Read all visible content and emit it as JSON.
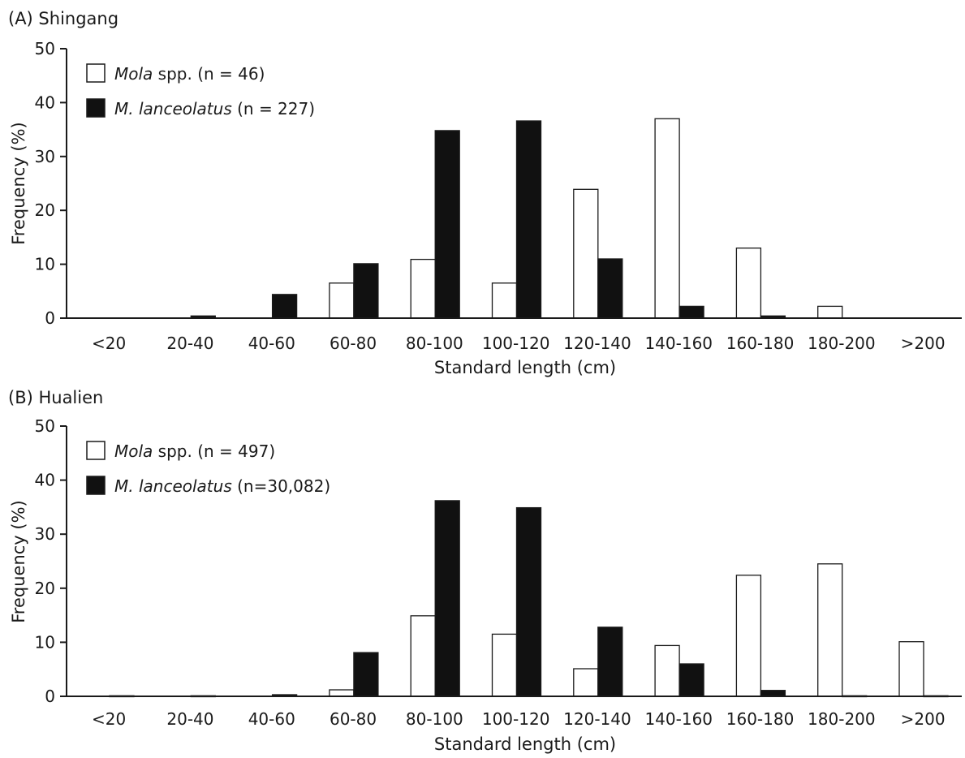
{
  "chart_data": [
    {
      "type": "bar",
      "title": "(A) Shingang",
      "xlabel": "Standard length (cm)",
      "ylabel": "Frequency (%)",
      "ylim": [
        0,
        50
      ],
      "yticks": [
        "0",
        "10",
        "20",
        "30",
        "40",
        "50"
      ],
      "categories": [
        "<20",
        "20-40",
        "40-60",
        "60-80",
        "80-100",
        "100-120",
        "120-140",
        "140-160",
        "160-180",
        "180-200",
        ">200"
      ],
      "legend_position": "top-left",
      "series": [
        {
          "name": "Mola spp.",
          "legend_italic": "Mola",
          "legend_rest": " spp. (n = 46)",
          "fill": "#ffffff",
          "values": [
            0,
            0,
            0,
            6.5,
            10.9,
            6.5,
            23.9,
            37.0,
            13.0,
            2.2,
            0
          ]
        },
        {
          "name": "M. lanceolatus",
          "legend_italic": "M. lanceolatus",
          "legend_rest": " (n = 227)",
          "fill": "#111111",
          "values": [
            0,
            0.4,
            4.4,
            10.1,
            34.8,
            36.6,
            11.0,
            2.2,
            0.4,
            0,
            0
          ]
        }
      ]
    },
    {
      "type": "bar",
      "title": "(B) Hualien",
      "xlabel": "Standard length (cm)",
      "ylabel": "Frequency (%)",
      "ylim": [
        0,
        50
      ],
      "yticks": [
        "0",
        "10",
        "20",
        "30",
        "40",
        "50"
      ],
      "categories": [
        "<20",
        "20-40",
        "40-60",
        "60-80",
        "80-100",
        "100-120",
        "120-140",
        "140-160",
        "160-180",
        "180-200",
        ">200"
      ],
      "legend_position": "top-left",
      "series": [
        {
          "name": "Mola spp.",
          "legend_italic": "Mola",
          "legend_rest": " spp. (n = 497)",
          "fill": "#ffffff",
          "values": [
            0,
            0,
            0,
            1.2,
            14.9,
            11.5,
            5.1,
            9.4,
            22.4,
            24.5,
            10.1
          ]
        },
        {
          "name": "M. lanceolatus",
          "legend_italic": "M. lanceolatus",
          "legend_rest": " (n=30,082)",
          "fill": "#111111",
          "values": [
            0.1,
            0.1,
            0.3,
            8.1,
            36.2,
            34.9,
            12.8,
            6.0,
            1.1,
            0.1,
            0.1
          ]
        }
      ]
    }
  ]
}
